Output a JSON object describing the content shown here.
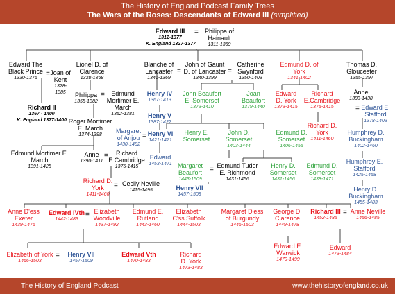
{
  "header": {
    "title": "The History of England Podcast Family Trees",
    "subtitle": "The Wars of the Roses: Descendants of Edward III",
    "subtitle_note": "(simplified)"
  },
  "footer": {
    "left": "The History of England Podcast",
    "right": "www.thehistoryofengland.co.uk"
  },
  "colors": {
    "banner": "#b5462b",
    "york": "#e8141c",
    "lancaster": "#2f5597",
    "beaufort": "#2fa33c",
    "other": "#000000"
  },
  "marriage_sign": "=",
  "people": {
    "edward3": {
      "name": "Edward III",
      "dates": "1312-1377",
      "extra": "K. England 1327-1377"
    },
    "philippa": {
      "name": "Philippa of Hainault",
      "dates": "1311-1369"
    },
    "blackprince": {
      "name": "Edward The Black Prince",
      "dates": "1330-1376"
    },
    "joan_kent": {
      "name": "Joan of Kent",
      "dates": "1328-1385"
    },
    "richard2": {
      "name": "Richard II",
      "dates": "1367 - 1400",
      "extra": "K. England 1377-1400"
    },
    "lionel": {
      "name": "Lionel D. of Clarence",
      "dates": "1338-1368"
    },
    "philippa_c": {
      "name": "Philippa",
      "dates": "1355-1382"
    },
    "edmund_mortimer_em": {
      "name": "Edmund Mortimer E. March",
      "dates": "1352-1381"
    },
    "roger_mortimer": {
      "name": "Roger Mortimer E. March",
      "dates": "1374-1398"
    },
    "edmund_mortimer_em2": {
      "name": "Edmund Mortimer E. March",
      "dates": "1391-1425"
    },
    "anne_mortimer": {
      "name": "Anne",
      "dates": "1390-1411"
    },
    "richard_cambridge_a": {
      "name": "Richard E.Cambridge",
      "dates": "1375-1415"
    },
    "richard_york": {
      "name": "Richard D. York",
      "dates": "1411-1460"
    },
    "cecily": {
      "name": "Cecily Neville",
      "dates": "1415-1495"
    },
    "blanche": {
      "name": "Blanche of Lancaster",
      "dates": "1341-1369"
    },
    "john_gaunt": {
      "name": "John of Gaunt D. of Lancaster",
      "dates": "1340-1399"
    },
    "catherine": {
      "name": "Catherine Swynford",
      "dates": "1350-1403"
    },
    "henry4": {
      "name": "Henry IV",
      "dates": "1367-1413"
    },
    "henry5": {
      "name": "Henry V",
      "dates": "1387-1422"
    },
    "margaret_anjou": {
      "name": "Margaret of Anjou",
      "dates": "1430-1482"
    },
    "henry6": {
      "name": "Henry VI",
      "dates": "1421-1471"
    },
    "edward_lancaster": {
      "name": "Edward",
      "dates": "1453-1471"
    },
    "john_beaufort": {
      "name": "John Beaufort E. Somerset",
      "dates": "1373-1410"
    },
    "joan_beaufort": {
      "name": "Joan Beaufort",
      "dates": "1379-1440"
    },
    "henry_somerset": {
      "name": "Henry E. Somerset"
    },
    "john_somerset": {
      "name": "John D. Somerset",
      "dates": "1403-1444"
    },
    "edmund_somerset": {
      "name": "Edmund D. Somerset",
      "dates": "1406-1455"
    },
    "margaret_beaufort": {
      "name": "Margaret Beaufort",
      "dates": "1443-1509"
    },
    "edmund_tudor": {
      "name": "Edmund Tudor E. Richmond",
      "dates": "1431-1456"
    },
    "henry7": {
      "name": "Henry VII",
      "dates": "1457-1509"
    },
    "henry_dsom": {
      "name": "Henry D. Somerset",
      "dates": "1431-1456"
    },
    "edmund_dsom2": {
      "name": "Edmund D. Somerset",
      "dates": "1438-1471"
    },
    "edmund_york": {
      "name": "Edmund D. of York",
      "dates": "1341-1402"
    },
    "edward_york": {
      "name": "Edward D. York",
      "dates": "1373-1415"
    },
    "richard_cambridge": {
      "name": "Richard E.Cambridge",
      "dates": "1375-1415"
    },
    "richard_york2": {
      "name": "Richard D. York",
      "dates": "1411-1460"
    },
    "thomas": {
      "name": "Thomas D. Gloucester",
      "dates": "1355-1397"
    },
    "anne_g": {
      "name": "Anne",
      "dates": "1383-1438"
    },
    "edward_stafford": {
      "name": "Edward E. Stafford",
      "dates": "1378-1403"
    },
    "humphrey1": {
      "name": "Humphrey D. Buckingham",
      "dates": "1402-1460"
    },
    "humphrey2": {
      "name": "Humphrey E. Stafford",
      "dates": "1425-1458"
    },
    "henry_buck": {
      "name": "Henry D. Buckingham",
      "dates": "1455-1483"
    },
    "anne_exeter": {
      "name": "Anne D'ess Exeter",
      "dates": "1439-1476"
    },
    "edward4": {
      "name": "Edward IVth",
      "dates": "1442-1483"
    },
    "elizabeth_w": {
      "name": "Elizabeth Woodville",
      "dates": "1437-1492"
    },
    "edmund_rutland": {
      "name": "Edmund E. Rutland",
      "dates": "1443-1460"
    },
    "elizabeth_suffolk": {
      "name": "Elizabeth C'ss Suffolk",
      "dates": "1444-1503"
    },
    "margaret_burgundy": {
      "name": "Margaret D'ess of Burgundy",
      "dates": "1446-1503"
    },
    "george_clarence": {
      "name": "George D. Clarence",
      "dates": "1449-1478"
    },
    "richard3": {
      "name": "Richard III",
      "dates": "1452-1485"
    },
    "anne_neville": {
      "name": "Anne Neville",
      "dates": "1456-1485"
    },
    "elizabeth_york": {
      "name": "Elizabeth of York",
      "dates": "1466-1503"
    },
    "henry7b": {
      "name": "Henry VII",
      "dates": "1457-1509"
    },
    "edward5": {
      "name": "Edward Vth",
      "dates": "1470-1483"
    },
    "richard_dyork": {
      "name": "Richard D. York",
      "dates": "1473-1483"
    },
    "edward_warwick": {
      "name": "Edward E. Warwick",
      "dates": "1479-1499"
    },
    "edward_r3": {
      "name": "Edward",
      "dates": "1473-1484"
    }
  }
}
